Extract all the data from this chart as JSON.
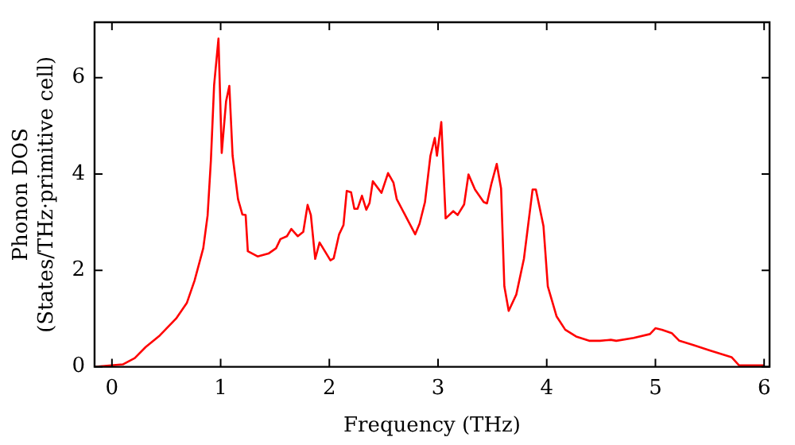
{
  "chart_data": {
    "type": "line",
    "xlabel": "Frequency (THz)",
    "ylabel": "Phonon DOS\n(States/THz·primitive cell)",
    "xlim": [
      -0.16,
      6.05
    ],
    "ylim": [
      0,
      7.15
    ],
    "xticks": [
      0,
      1,
      2,
      3,
      4,
      5,
      6
    ],
    "yticks": [
      0,
      2,
      4,
      6
    ],
    "grid": false,
    "legend": false,
    "marker": "none",
    "line_style": "solid",
    "series": [
      {
        "color": "#ff0000",
        "x": [
          -0.15,
          0.1,
          0.21,
          0.31,
          0.44,
          0.59,
          0.69,
          0.76,
          0.84,
          0.88,
          0.91,
          0.94,
          0.98,
          1.01,
          1.05,
          1.08,
          1.11,
          1.16,
          1.2,
          1.23,
          1.25,
          1.34,
          1.44,
          1.51,
          1.55,
          1.61,
          1.65,
          1.71,
          1.76,
          1.8,
          1.83,
          1.87,
          1.91,
          2.01,
          2.04,
          2.09,
          2.13,
          2.16,
          2.2,
          2.23,
          2.26,
          2.3,
          2.34,
          2.37,
          2.4,
          2.48,
          2.54,
          2.59,
          2.62,
          2.72,
          2.79,
          2.83,
          2.88,
          2.93,
          2.97,
          2.99,
          3.03,
          3.07,
          3.14,
          3.18,
          3.24,
          3.28,
          3.34,
          3.42,
          3.45,
          3.49,
          3.54,
          3.58,
          3.61,
          3.65,
          3.72,
          3.79,
          3.87,
          3.9,
          3.97,
          4.01,
          4.09,
          4.17,
          4.27,
          4.39,
          4.49,
          4.59,
          4.64,
          4.8,
          4.95,
          5.0,
          5.06,
          5.15,
          5.22,
          5.35,
          5.5,
          5.7,
          5.77,
          6.0
        ],
        "values": [
          0,
          0.05,
          0.18,
          0.41,
          0.65,
          1.0,
          1.33,
          1.79,
          2.46,
          3.14,
          4.27,
          5.85,
          6.81,
          4.44,
          5.51,
          5.83,
          4.38,
          3.48,
          3.16,
          3.15,
          2.4,
          2.29,
          2.35,
          2.46,
          2.65,
          2.71,
          2.86,
          2.71,
          2.8,
          3.36,
          3.15,
          2.24,
          2.58,
          2.21,
          2.25,
          2.75,
          2.94,
          3.65,
          3.62,
          3.28,
          3.28,
          3.55,
          3.26,
          3.4,
          3.85,
          3.61,
          4.02,
          3.82,
          3.48,
          3.05,
          2.75,
          2.97,
          3.42,
          4.38,
          4.75,
          4.38,
          5.08,
          3.08,
          3.23,
          3.15,
          3.37,
          3.99,
          3.68,
          3.42,
          3.39,
          3.79,
          4.21,
          3.7,
          1.67,
          1.16,
          1.5,
          2.24,
          3.68,
          3.68,
          2.92,
          1.67,
          1.05,
          0.77,
          0.63,
          0.54,
          0.54,
          0.56,
          0.54,
          0.6,
          0.68,
          0.8,
          0.77,
          0.7,
          0.54,
          0.45,
          0.34,
          0.2,
          0.03,
          0.03
        ]
      }
    ]
  }
}
